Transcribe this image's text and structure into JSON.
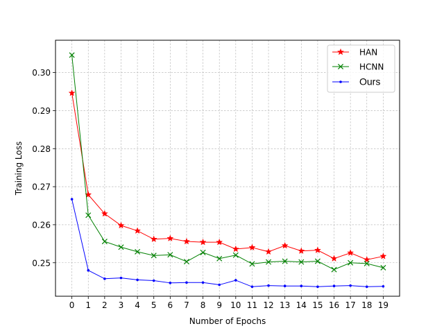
{
  "chart_data": {
    "type": "line",
    "xlabel": "Number of Epochs",
    "ylabel": "Training Loss",
    "x": [
      0,
      1,
      2,
      3,
      4,
      5,
      6,
      7,
      8,
      9,
      10,
      11,
      12,
      13,
      14,
      15,
      16,
      17,
      18,
      19
    ],
    "xlim": [
      -1,
      20
    ],
    "ylim": [
      0.2412,
      0.3085
    ],
    "yticks": [
      0.25,
      0.26,
      0.27,
      0.28,
      0.29,
      0.3
    ],
    "yticklabels": [
      "0.25",
      "0.26",
      "0.27",
      "0.28",
      "0.29",
      "0.30"
    ],
    "grid": true,
    "legend_position": "top-right",
    "series": [
      {
        "name": "HAN",
        "color": "#ff0000",
        "marker": "star",
        "values": [
          0.2946,
          0.2679,
          0.2629,
          0.2598,
          0.2584,
          0.2562,
          0.2564,
          0.2556,
          0.2554,
          0.2554,
          0.2536,
          0.254,
          0.2529,
          0.2545,
          0.2531,
          0.2533,
          0.2511,
          0.2526,
          0.2508,
          0.2517
        ]
      },
      {
        "name": "HCNN",
        "color": "#008000",
        "marker": "x",
        "values": [
          0.3046,
          0.2625,
          0.2556,
          0.2541,
          0.2529,
          0.2519,
          0.2521,
          0.2503,
          0.2527,
          0.2511,
          0.252,
          0.2497,
          0.2502,
          0.2504,
          0.2502,
          0.2504,
          0.2482,
          0.25,
          0.2498,
          0.2487
        ]
      },
      {
        "name": "Ours",
        "color": "#0000ff",
        "marker": "dot",
        "values": [
          0.2667,
          0.248,
          0.2458,
          0.246,
          0.2455,
          0.2453,
          0.2447,
          0.2448,
          0.2448,
          0.2442,
          0.2454,
          0.2437,
          0.244,
          0.2439,
          0.2439,
          0.2437,
          0.2439,
          0.244,
          0.2437,
          0.2438
        ]
      }
    ]
  }
}
